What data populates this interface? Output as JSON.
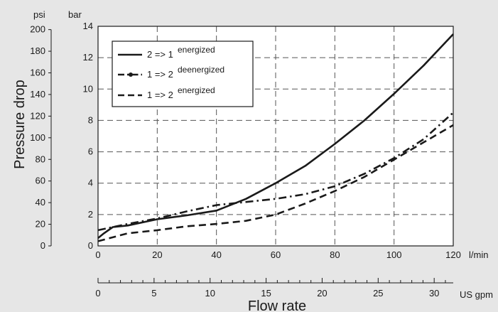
{
  "chart_data": {
    "type": "line",
    "xlabel": "Flow rate",
    "ylabel": "Pressure drop",
    "y_unit_left": "psi",
    "y_unit_right": "bar",
    "x_unit": "l/min",
    "x2_unit": "US gpm",
    "xlim": [
      0,
      120
    ],
    "ylim": [
      0,
      14
    ],
    "x_ticks": [
      0,
      20,
      40,
      60,
      80,
      100,
      120
    ],
    "y_ticks": [
      0,
      2,
      4,
      6,
      8,
      10,
      12,
      14
    ],
    "psi_ticks": [
      0,
      20,
      40,
      60,
      80,
      100,
      120,
      140,
      160,
      180,
      200
    ],
    "gpm_ticks": [
      0,
      5,
      10,
      15,
      20,
      25,
      30
    ],
    "grid": true,
    "legend_position": "top-left",
    "series": [
      {
        "name": "2 => 1",
        "superscript": "energized",
        "style": "solid",
        "x": [
          0,
          2,
          5,
          10,
          20,
          30,
          40,
          50,
          60,
          70,
          80,
          90,
          100,
          110,
          120
        ],
        "y": [
          0.5,
          0.8,
          1.2,
          1.3,
          1.7,
          1.95,
          2.25,
          3.0,
          4.0,
          5.1,
          6.5,
          8.0,
          9.7,
          11.5,
          13.5
        ]
      },
      {
        "name": "1 => 2",
        "superscript": "deenergized",
        "style": "dash-dot",
        "x": [
          0,
          10,
          20,
          30,
          40,
          50,
          60,
          70,
          80,
          90,
          100,
          110,
          120
        ],
        "y": [
          1.0,
          1.4,
          1.75,
          2.2,
          2.6,
          2.8,
          3.0,
          3.3,
          3.8,
          4.6,
          5.6,
          6.8,
          8.5
        ]
      },
      {
        "name": "1 => 2",
        "superscript": "energized",
        "style": "dashed",
        "x": [
          0,
          10,
          20,
          30,
          40,
          50,
          60,
          70,
          80,
          90,
          100,
          110,
          120
        ],
        "y": [
          0.3,
          0.8,
          1.0,
          1.25,
          1.4,
          1.6,
          2.0,
          2.7,
          3.5,
          4.4,
          5.5,
          6.6,
          7.7
        ]
      }
    ]
  }
}
